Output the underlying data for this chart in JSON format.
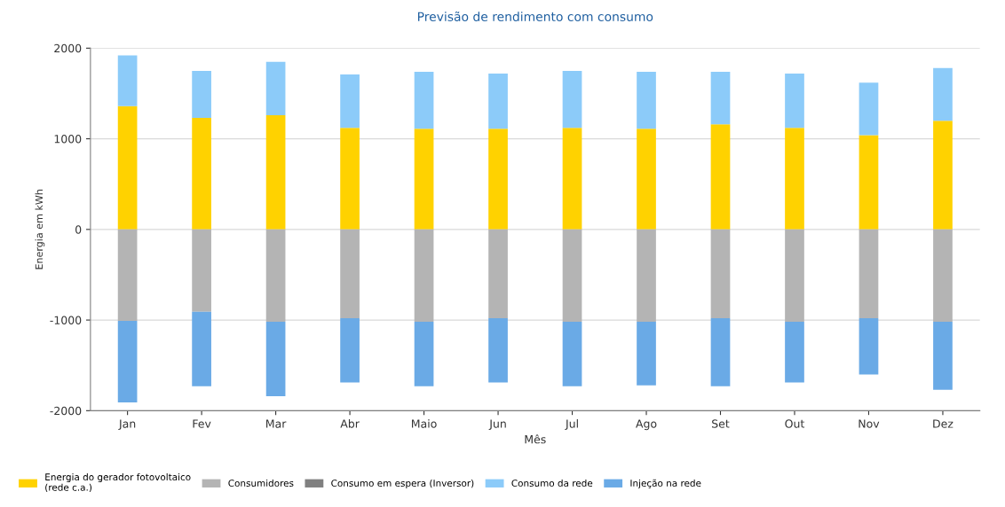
{
  "chart_data": {
    "type": "bar",
    "stacked": true,
    "title": "Previsão de rendimento com consumo",
    "xlabel": "Mês",
    "ylabel": "Energia em kWh",
    "categories": [
      "Jan",
      "Fev",
      "Mar",
      "Abr",
      "Maio",
      "Jun",
      "Jul",
      "Ago",
      "Set",
      "Out",
      "Nov",
      "Dez"
    ],
    "series": [
      {
        "name": "Energia do gerador fotovoltaico\n(rede c.a.)",
        "color": "#ffd200",
        "values": [
          1360,
          1230,
          1260,
          1120,
          1110,
          1110,
          1120,
          1110,
          1160,
          1120,
          1040,
          1200
        ]
      },
      {
        "name": "Consumidores",
        "color": "#b4b4b4",
        "values": [
          -1010,
          -910,
          -1020,
          -980,
          -1020,
          -980,
          -1020,
          -1020,
          -980,
          -1020,
          -980,
          -1020
        ]
      },
      {
        "name": "Consumo em espera (Inversor)",
        "color": "#808080",
        "values": [
          0,
          0,
          0,
          0,
          0,
          0,
          0,
          0,
          0,
          0,
          0,
          0
        ]
      },
      {
        "name": "Consumo da rede",
        "color": "#8ccbf9",
        "values": [
          560,
          520,
          590,
          590,
          630,
          610,
          630,
          630,
          580,
          600,
          580,
          580
        ]
      },
      {
        "name": "Injeção na rede",
        "color": "#6aaae6",
        "values": [
          -900,
          -820,
          -820,
          -710,
          -710,
          -710,
          -710,
          -700,
          -750,
          -670,
          -620,
          -750
        ]
      }
    ],
    "ylim": [
      -2000,
      2000
    ],
    "yticks": [
      {
        "value": -2000,
        "label": "-2000"
      },
      {
        "value": -1000,
        "label": "-1000"
      },
      0,
      1000,
      2000
    ],
    "grid": "y",
    "legend": "bottom"
  }
}
